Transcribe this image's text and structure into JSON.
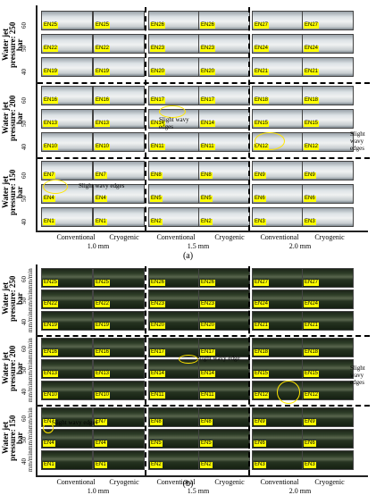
{
  "panel_a": {
    "caption": "(a)",
    "pressure_labels": [
      "Water jet pressure: 250 bar",
      "Water jet pressure: 200 bar",
      "Water jet pressure: 150 bar"
    ],
    "feed_labels": [
      "60",
      "50",
      "40"
    ],
    "rows": [
      [
        "EN25",
        "EN25",
        "EN26",
        "EN26",
        "EN27",
        "EN27"
      ],
      [
        "EN22",
        "EN22",
        "EN23",
        "EN23",
        "EN24",
        "EN24"
      ],
      [
        "EN19",
        "EN19",
        "EN20",
        "EN20",
        "EN21",
        "EN21"
      ],
      [
        "EN16",
        "EN16",
        "EN17",
        "EN17",
        "EN18",
        "EN18"
      ],
      [
        "EN13",
        "EN13",
        "EN14",
        "EN14",
        "EN15",
        "EN15"
      ],
      [
        "EN10",
        "EN10",
        "EN11",
        "EN11",
        "EN12",
        "EN12"
      ],
      [
        "EN7",
        "EN7",
        "EN8",
        "EN8",
        "EN9",
        "EN9"
      ],
      [
        "EN4",
        "EN4",
        "EN5",
        "EN5",
        "EN6",
        "EN6"
      ],
      [
        "EN1",
        "EN1",
        "EN2",
        "EN2",
        "EN3",
        "EN3"
      ]
    ],
    "column_labels": [
      "Conventional",
      "Cryogenic",
      "Conventional",
      "Cryogenic",
      "Conventional",
      "Cryogenic"
    ],
    "depth_labels": [
      "1.0 mm",
      "1.5 mm",
      "2.0 mm"
    ],
    "annotations": [
      "Slight wavy edges",
      "Slight wavy edges",
      "Slight wavy edges"
    ]
  },
  "panel_b": {
    "caption": "(b)",
    "pressure_labels": [
      "Water jet pressure: 250 bar",
      "Water jet pressure: 200 bar",
      "Water jet pressure: 150 bar"
    ],
    "feed_labels": [
      "60 mm/min",
      "50 mm/min",
      "40 mm/min"
    ],
    "rows": [
      [
        "EN25",
        "EN25",
        "EN26",
        "EN26",
        "EN27",
        "EN27"
      ],
      [
        "EN22",
        "EN22",
        "EN23",
        "EN23",
        "EN24",
        "EN24"
      ],
      [
        "EN19",
        "EN19",
        "EN20",
        "EN20",
        "EN21",
        "EN21"
      ],
      [
        "EN16",
        "EN16",
        "EN17",
        "EN17",
        "EN18",
        "EN18"
      ],
      [
        "EN13",
        "EN13",
        "EN14",
        "EN14",
        "EN15",
        "EN15"
      ],
      [
        "EN10",
        "EN10",
        "EN11",
        "EN11",
        "EN12",
        "EN12"
      ],
      [
        "EN7",
        "EN7",
        "EN8",
        "EN8",
        "EN9",
        "EN9"
      ],
      [
        "EN4",
        "EN4",
        "EN5",
        "EN5",
        "EN6",
        "EN6"
      ],
      [
        "EN1",
        "EN1",
        "EN2",
        "EN2",
        "EN3",
        "EN3"
      ]
    ],
    "column_labels": [
      "Conventional",
      "Cryogenic",
      "Conventional",
      "Cryogenic",
      "Conventional",
      "Cryogenic"
    ],
    "depth_labels": [
      "1.0 mm",
      "1.5 mm",
      "2.0 mm"
    ],
    "annotations": [
      "Slight wavy edges",
      "Slight wavy edge",
      "Slight wavy edges"
    ]
  },
  "colors": {
    "label_highlight": "#ffff00",
    "ellipse": "#ffe600"
  }
}
